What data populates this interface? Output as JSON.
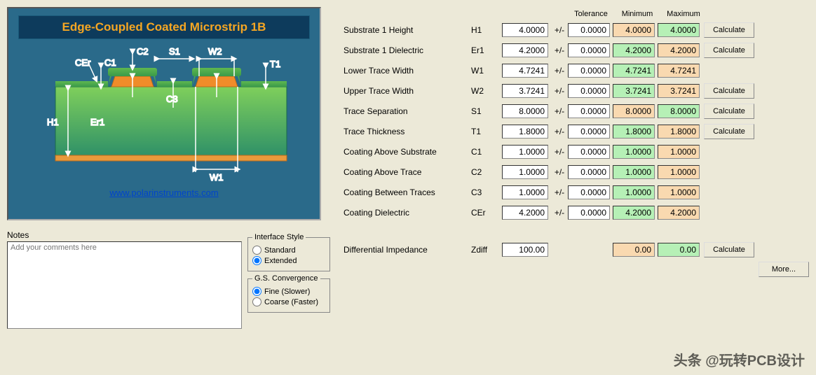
{
  "diagram": {
    "title": "Edge-Coupled Coated Microstrip 1B",
    "url": "www.polarinstruments.com",
    "labels": {
      "CEr": "CEr",
      "C1": "C1",
      "C2": "C2",
      "C3": "C3",
      "S1": "S1",
      "W2": "W2",
      "T1": "T1",
      "H1": "H1",
      "Er1": "Er1",
      "W1": "W1"
    },
    "colors": {
      "bg": "#2a6a8a",
      "titlebar_bg": "#0d3b5c",
      "title_text": "#f5a623",
      "substrate_top": "#6fbf4b",
      "substrate_bot": "#2e8f5f",
      "trace": "#f08c2a",
      "coating": "#49a34b",
      "line": "#ffffff",
      "url": "#0044cc",
      "copper": "#e89a3c"
    }
  },
  "headers": {
    "tolerance": "Tolerance",
    "minimum": "Minimum",
    "maximum": "Maximum"
  },
  "params": [
    {
      "name": "Substrate 1 Height",
      "sym": "H1",
      "val": "4.0000",
      "pm": "+/-",
      "tol": "0.0000",
      "min": "4.0000",
      "min_bg": "orange",
      "max": "4.0000",
      "max_bg": "green",
      "calc": true
    },
    {
      "name": "Substrate 1 Dielectric",
      "sym": "Er1",
      "val": "4.2000",
      "pm": "+/-",
      "tol": "0.0000",
      "min": "4.2000",
      "min_bg": "green",
      "max": "4.2000",
      "max_bg": "orange",
      "calc": true
    },
    {
      "name": "Lower Trace Width",
      "sym": "W1",
      "val": "4.7241",
      "pm": "+/-",
      "tol": "0.0000",
      "min": "4.7241",
      "min_bg": "green",
      "max": "4.7241",
      "max_bg": "orange",
      "calc": false
    },
    {
      "name": "Upper Trace Width",
      "sym": "W2",
      "val": "3.7241",
      "pm": "+/-",
      "tol": "0.0000",
      "min": "3.7241",
      "min_bg": "green",
      "max": "3.7241",
      "max_bg": "orange",
      "calc": true,
      "calc_label": "Calculate"
    },
    {
      "name": "Trace Separation",
      "sym": "S1",
      "val": "8.0000",
      "pm": "+/-",
      "tol": "0.0000",
      "min": "8.0000",
      "min_bg": "orange",
      "max": "8.0000",
      "max_bg": "green",
      "calc": true
    },
    {
      "name": "Trace Thickness",
      "sym": "T1",
      "val": "1.8000",
      "pm": "+/-",
      "tol": "0.0000",
      "min": "1.8000",
      "min_bg": "green",
      "max": "1.8000",
      "max_bg": "orange",
      "calc": true
    },
    {
      "name": "Coating Above Substrate",
      "sym": "C1",
      "val": "1.0000",
      "pm": "+/-",
      "tol": "0.0000",
      "min": "1.0000",
      "min_bg": "green",
      "max": "1.0000",
      "max_bg": "orange",
      "calc": false
    },
    {
      "name": "Coating Above Trace",
      "sym": "C2",
      "val": "1.0000",
      "pm": "+/-",
      "tol": "0.0000",
      "min": "1.0000",
      "min_bg": "green",
      "max": "1.0000",
      "max_bg": "orange",
      "calc": false
    },
    {
      "name": "Coating Between Traces",
      "sym": "C3",
      "val": "1.0000",
      "pm": "+/-",
      "tol": "0.0000",
      "min": "1.0000",
      "min_bg": "green",
      "max": "1.0000",
      "max_bg": "orange",
      "calc": false
    },
    {
      "name": "Coating Dielectric",
      "sym": "CEr",
      "val": "4.2000",
      "pm": "+/-",
      "tol": "0.0000",
      "min": "4.2000",
      "min_bg": "green",
      "max": "4.2000",
      "max_bg": "orange",
      "calc": false
    }
  ],
  "zdiff": {
    "label": "Differential Impedance",
    "sym": "Zdiff",
    "val": "100.00",
    "min": "0.00",
    "max": "0.00",
    "calc_label": "Calculate"
  },
  "buttons": {
    "calculate": "Calculate",
    "more": "More..."
  },
  "notes": {
    "label": "Notes",
    "placeholder": "Add your comments here"
  },
  "interface_style": {
    "legend": "Interface Style",
    "opt1": "Standard",
    "opt2": "Extended",
    "selected": "Extended"
  },
  "gs_conv": {
    "legend": "G.S. Convergence",
    "opt1": "Fine (Slower)",
    "opt2": "Coarse (Faster)",
    "selected": "Fine (Slower)"
  },
  "watermark": "头条 @玩转PCB设计"
}
